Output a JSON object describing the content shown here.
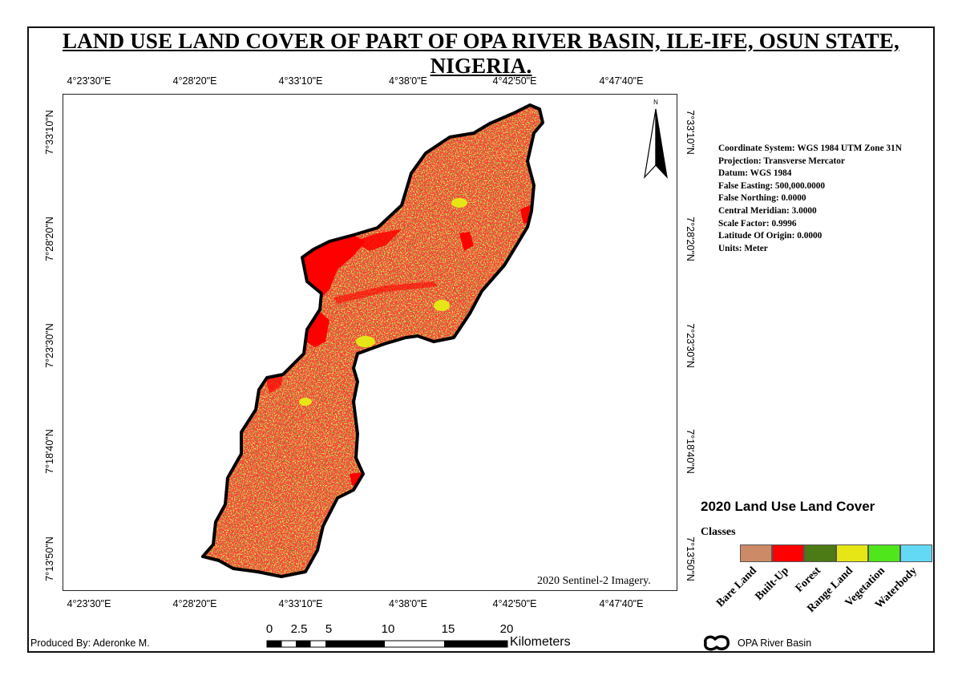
{
  "title": "LAND USE LAND COVER OF PART OF OPA RIVER BASIN, ILE-IFE, OSUN STATE, NIGERIA.",
  "longitude_ticks": [
    "4°23'30\"E",
    "4°28'20\"E",
    "4°33'10\"E",
    "4°38'0\"E",
    "4°42'50\"E",
    "4°47'40\"E"
  ],
  "latitude_ticks": [
    "7°33'10\"N",
    "7°28'20\"N",
    "7°23'30\"N",
    "7°18'40\"N",
    "7°13'50\"N"
  ],
  "north_arrow": {
    "label": "N",
    "icon": "north-arrow-icon"
  },
  "imagery_note": "2020 Sentinel-2 Imagery.",
  "crs": {
    "coordinate_system": "Coordinate System: WGS 1984 UTM Zone 31N",
    "projection": "Projection: Transverse Mercator",
    "datum": "Datum: WGS 1984",
    "false_easting": "False Easting: 500,000.0000",
    "false_northing": "False Northing: 0.0000",
    "central_meridian": "Central Meridian: 3.0000",
    "scale_factor": "Scale Factor: 0.9996",
    "latitude_of_origin": "Latitude Of Origin: 0.0000",
    "units": "Units: Meter"
  },
  "legend": {
    "title": "2020 Land Use Land Cover",
    "classes_label": "Classes",
    "classes": [
      {
        "label": "Bare Land",
        "color": "#cd8a66"
      },
      {
        "label": "Built-Up",
        "color": "#ff0000"
      },
      {
        "label": "Forest",
        "color": "#4c7a14"
      },
      {
        "label": "Range Land",
        "color": "#e6e617"
      },
      {
        "label": "Vegetation",
        "color": "#4fe61c"
      },
      {
        "label": "Waterbody",
        "color": "#63d9f5"
      }
    ],
    "basin_label": "OPA River Basin"
  },
  "scale_bar": {
    "ticks": [
      "0",
      "2.5",
      "5",
      "10",
      "15",
      "20"
    ],
    "unit": "Kilometers"
  },
  "produced_by": "Produced By: Aderonke M."
}
